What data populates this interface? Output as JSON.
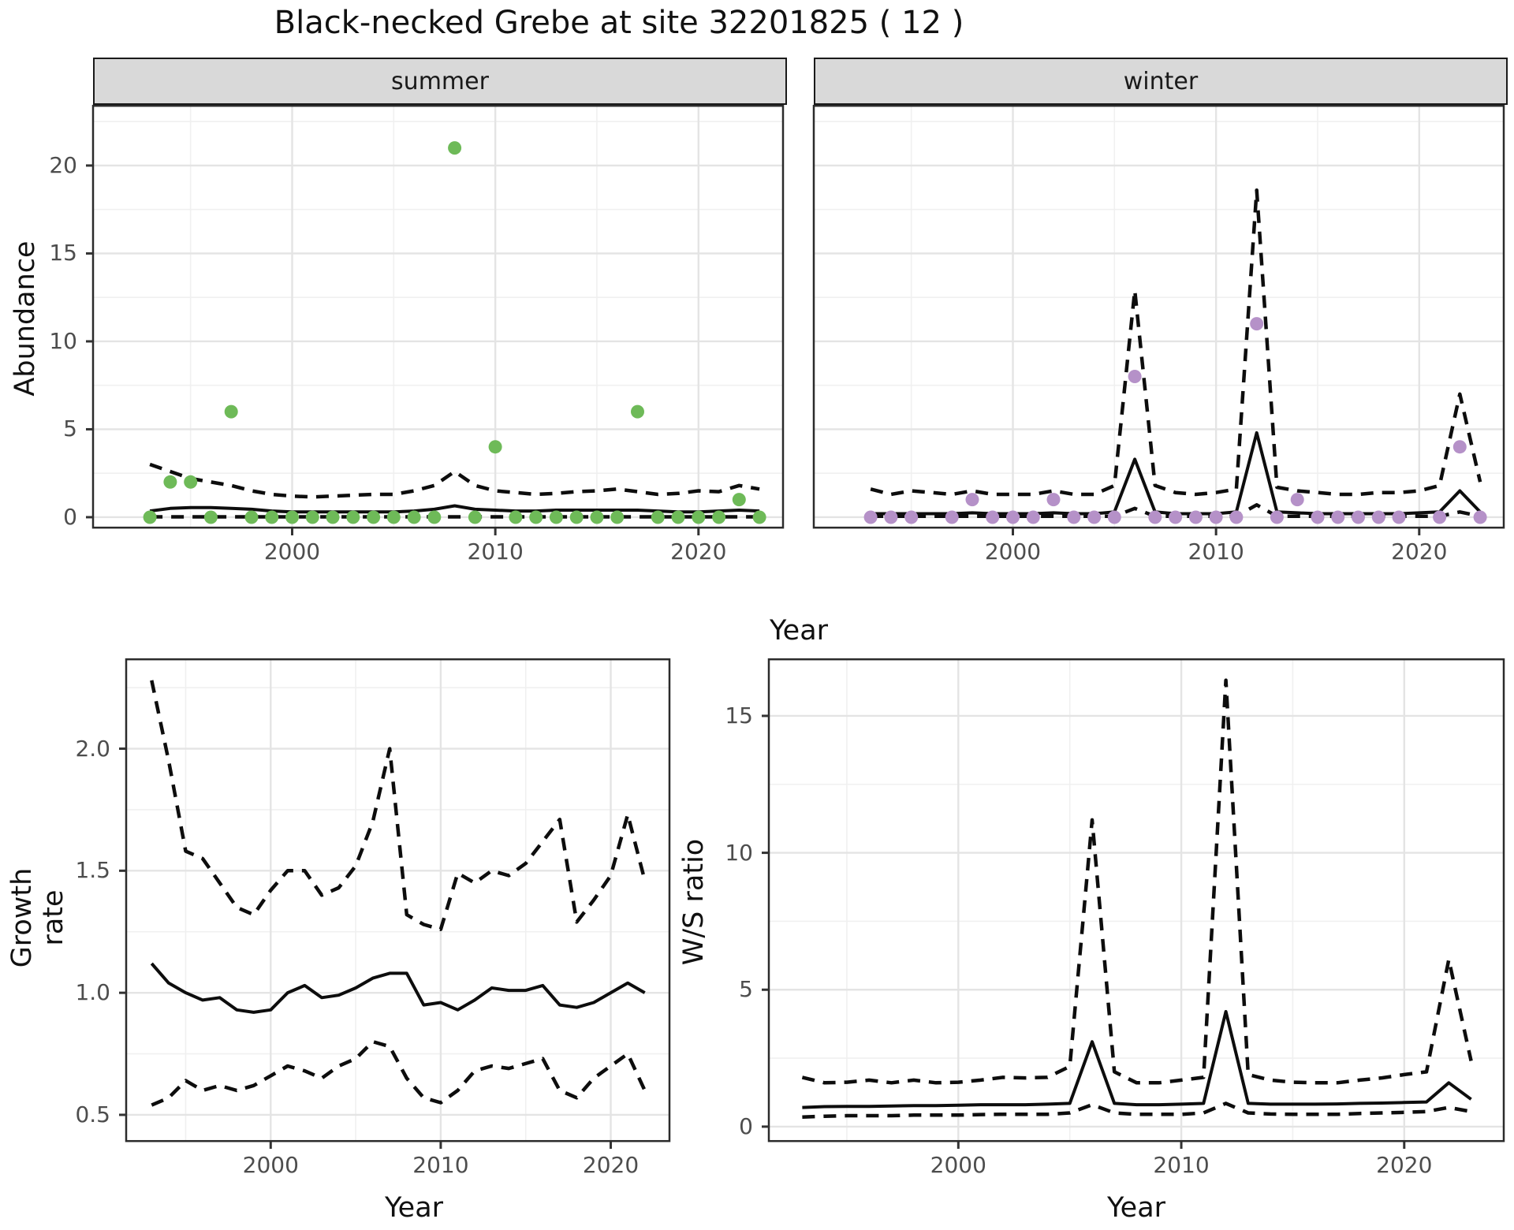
{
  "title": "Black-necked Grebe at site 32201825 ( 12 )",
  "axis_labels": {
    "x": "Year",
    "abundance": "Abundance",
    "growth": "Growth rate",
    "ws": "W/S ratio"
  },
  "facets": {
    "summer": "summer",
    "winter": "winter"
  },
  "colors": {
    "summer_point": "#6eba58",
    "winter_point": "#b591c8",
    "line": "#0d0d0d",
    "grid_major": "#e4e4e4",
    "grid_minor": "#f0f0f0",
    "strip_bg": "#d9d9d9",
    "panel_border": "#2b2b2b",
    "axis_text": "#4d4d4d"
  },
  "chart_data": [
    {
      "id": "abundance_summer",
      "type": "scatter",
      "facet_label": "summer",
      "xlabel": "Year",
      "ylabel": "Abundance",
      "xlim": [
        1990.2,
        2024.2
      ],
      "ylim": [
        -0.63,
        23.45
      ],
      "x_ticks": {
        "values": [
          2000,
          2010,
          2020
        ],
        "labels": [
          "2000",
          "2010",
          "2020"
        ]
      },
      "x_minor": [
        1995,
        2005,
        2015
      ],
      "y_ticks": {
        "values": [
          0,
          5,
          10,
          15,
          20
        ],
        "labels": [
          "0",
          "5",
          "10",
          "15",
          "20"
        ]
      },
      "y_minor": [
        2.5,
        7.5,
        12.5,
        17.5,
        22.5
      ],
      "years": [
        1993,
        1994,
        1995,
        1996,
        1997,
        1998,
        1999,
        2000,
        2001,
        2002,
        2003,
        2004,
        2005,
        2006,
        2007,
        2008,
        2009,
        2010,
        2011,
        2012,
        2013,
        2014,
        2015,
        2016,
        2017,
        2018,
        2019,
        2020,
        2021,
        2022,
        2023
      ],
      "points": [
        0,
        2,
        2,
        0,
        6,
        0,
        0,
        0,
        0,
        0,
        0,
        0,
        0,
        0,
        0,
        21,
        0,
        4,
        0,
        0,
        0,
        0,
        0,
        0,
        6,
        0,
        0,
        0,
        0,
        1,
        0
      ],
      "series": [
        {
          "name": "ci_lower",
          "style": "dashed",
          "values": [
            0.02,
            0.02,
            0.02,
            0.02,
            0.02,
            0.02,
            0.02,
            0.02,
            0.02,
            0.02,
            0.02,
            0.02,
            0.02,
            0.02,
            0.02,
            0.02,
            0.02,
            0.02,
            0.02,
            0.02,
            0.02,
            0.02,
            0.02,
            0.02,
            0.02,
            0.02,
            0.02,
            0.02,
            0.02,
            0.02,
            0.02
          ]
        },
        {
          "name": "ci_upper",
          "style": "dashed",
          "values": [
            3.0,
            2.6,
            2.2,
            2.0,
            1.8,
            1.5,
            1.3,
            1.2,
            1.15,
            1.2,
            1.25,
            1.3,
            1.3,
            1.5,
            1.8,
            2.6,
            1.8,
            1.5,
            1.4,
            1.3,
            1.35,
            1.45,
            1.5,
            1.6,
            1.45,
            1.3,
            1.35,
            1.5,
            1.45,
            1.8,
            1.6
          ]
        },
        {
          "name": "fit",
          "style": "solid",
          "values": [
            0.35,
            0.5,
            0.55,
            0.55,
            0.5,
            0.45,
            0.35,
            0.3,
            0.3,
            0.3,
            0.3,
            0.3,
            0.3,
            0.35,
            0.45,
            0.65,
            0.45,
            0.4,
            0.35,
            0.35,
            0.4,
            0.4,
            0.4,
            0.4,
            0.4,
            0.35,
            0.3,
            0.3,
            0.35,
            0.4,
            0.35
          ]
        }
      ],
      "point_color": "#6eba58"
    },
    {
      "id": "abundance_winter",
      "type": "scatter",
      "facet_label": "winter",
      "xlabel": "Year",
      "ylabel": "Abundance",
      "xlim": [
        1990.2,
        2024.2
      ],
      "ylim": [
        -0.63,
        23.45
      ],
      "x_ticks": {
        "values": [
          2000,
          2010,
          2020
        ],
        "labels": [
          "2000",
          "2010",
          "2020"
        ]
      },
      "x_minor": [
        1995,
        2005,
        2015
      ],
      "y_ticks": {
        "values": [
          0,
          5,
          10,
          15,
          20
        ],
        "labels": [
          "0",
          "5",
          "10",
          "15",
          "20"
        ]
      },
      "y_minor": [
        2.5,
        7.5,
        12.5,
        17.5,
        22.5
      ],
      "years": [
        1993,
        1994,
        1995,
        1996,
        1997,
        1998,
        1999,
        2000,
        2001,
        2002,
        2003,
        2004,
        2005,
        2006,
        2007,
        2008,
        2009,
        2010,
        2011,
        2012,
        2013,
        2014,
        2015,
        2016,
        2017,
        2018,
        2019,
        2020,
        2021,
        2022,
        2023
      ],
      "points": [
        0,
        0,
        0,
        null,
        0,
        1,
        0,
        0,
        0,
        1,
        0,
        0,
        0,
        8,
        0,
        0,
        0,
        0,
        0,
        11,
        0,
        1,
        0,
        0,
        0,
        0,
        0,
        null,
        0,
        4,
        0
      ],
      "series": [
        {
          "name": "ci_lower",
          "style": "dashed",
          "values": [
            0.05,
            0.05,
            0.05,
            0.05,
            0.05,
            0.05,
            0.05,
            0.05,
            0.05,
            0.05,
            0.05,
            0.05,
            0.05,
            0.5,
            0.05,
            0.05,
            0.05,
            0.05,
            0.05,
            0.7,
            0.05,
            0.05,
            0.05,
            0.05,
            0.05,
            0.05,
            0.05,
            0.05,
            0.05,
            0.3,
            0.05
          ]
        },
        {
          "name": "ci_upper",
          "style": "dashed",
          "values": [
            1.6,
            1.3,
            1.5,
            1.4,
            1.3,
            1.5,
            1.3,
            1.3,
            1.3,
            1.5,
            1.3,
            1.3,
            1.8,
            12.9,
            1.8,
            1.4,
            1.3,
            1.4,
            1.6,
            18.6,
            1.7,
            1.5,
            1.4,
            1.3,
            1.3,
            1.4,
            1.4,
            1.5,
            1.8,
            7.0,
            2.0
          ]
        },
        {
          "name": "fit",
          "style": "solid",
          "values": [
            0.2,
            0.2,
            0.2,
            0.2,
            0.2,
            0.25,
            0.2,
            0.2,
            0.2,
            0.25,
            0.2,
            0.2,
            0.3,
            3.3,
            0.3,
            0.2,
            0.2,
            0.2,
            0.3,
            4.8,
            0.3,
            0.25,
            0.2,
            0.2,
            0.2,
            0.2,
            0.2,
            0.25,
            0.3,
            1.5,
            0.3
          ]
        }
      ],
      "point_color": "#b591c8"
    },
    {
      "id": "growth_rate",
      "type": "line",
      "xlabel": "Year",
      "ylabel": "Growth rate",
      "xlim": [
        1991.5,
        2023.5
      ],
      "ylim": [
        0.39,
        2.37
      ],
      "x_ticks": {
        "values": [
          2000,
          2010,
          2020
        ],
        "labels": [
          "2000",
          "2010",
          "2020"
        ]
      },
      "x_minor": [
        1995,
        2005,
        2015
      ],
      "y_ticks": {
        "values": [
          0.5,
          1.0,
          1.5,
          2.0
        ],
        "labels": [
          "0.5",
          "1.0",
          "1.5",
          "2.0"
        ]
      },
      "y_minor": [
        0.75,
        1.25,
        1.75,
        2.25
      ],
      "years": [
        1993,
        1994,
        1995,
        1996,
        1997,
        1998,
        1999,
        2000,
        2001,
        2002,
        2003,
        2004,
        2005,
        2006,
        2007,
        2008,
        2009,
        2010,
        2011,
        2012,
        2013,
        2014,
        2015,
        2016,
        2017,
        2018,
        2019,
        2020,
        2021,
        2022
      ],
      "series": [
        {
          "name": "ci_lower",
          "style": "dashed",
          "values": [
            0.54,
            0.57,
            0.64,
            0.6,
            0.62,
            0.6,
            0.62,
            0.66,
            0.7,
            0.68,
            0.65,
            0.7,
            0.73,
            0.8,
            0.78,
            0.65,
            0.57,
            0.55,
            0.6,
            0.68,
            0.7,
            0.69,
            0.71,
            0.73,
            0.6,
            0.57,
            0.65,
            0.7,
            0.75,
            0.6
          ]
        },
        {
          "name": "ci_upper",
          "style": "dashed",
          "values": [
            2.28,
            1.95,
            1.58,
            1.55,
            1.45,
            1.35,
            1.32,
            1.42,
            1.5,
            1.5,
            1.4,
            1.43,
            1.52,
            1.7,
            2.0,
            1.32,
            1.28,
            1.26,
            1.49,
            1.45,
            1.5,
            1.48,
            1.53,
            1.62,
            1.71,
            1.29,
            1.38,
            1.48,
            1.73,
            1.46
          ]
        },
        {
          "name": "fit",
          "style": "solid",
          "values": [
            1.12,
            1.04,
            1.0,
            0.97,
            0.98,
            0.93,
            0.92,
            0.93,
            1.0,
            1.03,
            0.98,
            0.99,
            1.02,
            1.06,
            1.08,
            1.08,
            0.95,
            0.96,
            0.93,
            0.97,
            1.02,
            1.01,
            1.01,
            1.03,
            0.95,
            0.94,
            0.96,
            1.0,
            1.04,
            1.0
          ]
        }
      ]
    },
    {
      "id": "ws_ratio",
      "type": "line",
      "xlabel": "Year",
      "ylabel": "W/S ratio",
      "xlim": [
        1991.5,
        2024.5
      ],
      "ylim": [
        -0.55,
        17.1
      ],
      "x_ticks": {
        "values": [
          2000,
          2010,
          2020
        ],
        "labels": [
          "2000",
          "2010",
          "2020"
        ]
      },
      "x_minor": [
        1995,
        2005,
        2015
      ],
      "y_ticks": {
        "values": [
          0,
          5,
          10,
          15
        ],
        "labels": [
          "0",
          "5",
          "10",
          "15"
        ]
      },
      "y_minor": [
        2.5,
        7.5,
        12.5
      ],
      "years": [
        1993,
        1994,
        1995,
        1996,
        1997,
        1998,
        1999,
        2000,
        2001,
        2002,
        2003,
        2004,
        2005,
        2006,
        2007,
        2008,
        2009,
        2010,
        2011,
        2012,
        2013,
        2014,
        2015,
        2016,
        2017,
        2018,
        2019,
        2020,
        2021,
        2022,
        2023
      ],
      "series": [
        {
          "name": "ci_lower",
          "style": "dashed",
          "values": [
            0.35,
            0.38,
            0.4,
            0.4,
            0.4,
            0.42,
            0.42,
            0.42,
            0.44,
            0.45,
            0.45,
            0.45,
            0.5,
            0.8,
            0.5,
            0.45,
            0.45,
            0.45,
            0.5,
            0.85,
            0.5,
            0.46,
            0.45,
            0.45,
            0.45,
            0.48,
            0.5,
            0.52,
            0.55,
            0.7,
            0.55
          ]
        },
        {
          "name": "ci_upper",
          "style": "dashed",
          "values": [
            1.8,
            1.6,
            1.62,
            1.7,
            1.6,
            1.7,
            1.6,
            1.62,
            1.7,
            1.8,
            1.78,
            1.8,
            2.2,
            11.2,
            2.0,
            1.6,
            1.6,
            1.7,
            1.8,
            16.3,
            1.9,
            1.7,
            1.62,
            1.6,
            1.6,
            1.7,
            1.78,
            1.9,
            2.0,
            6.1,
            2.4
          ]
        },
        {
          "name": "fit",
          "style": "solid",
          "values": [
            0.7,
            0.73,
            0.74,
            0.74,
            0.75,
            0.77,
            0.77,
            0.78,
            0.8,
            0.8,
            0.8,
            0.82,
            0.85,
            3.1,
            0.85,
            0.8,
            0.8,
            0.82,
            0.85,
            4.2,
            0.85,
            0.82,
            0.82,
            0.82,
            0.83,
            0.85,
            0.86,
            0.88,
            0.9,
            1.6,
            1.0
          ]
        }
      ]
    }
  ]
}
